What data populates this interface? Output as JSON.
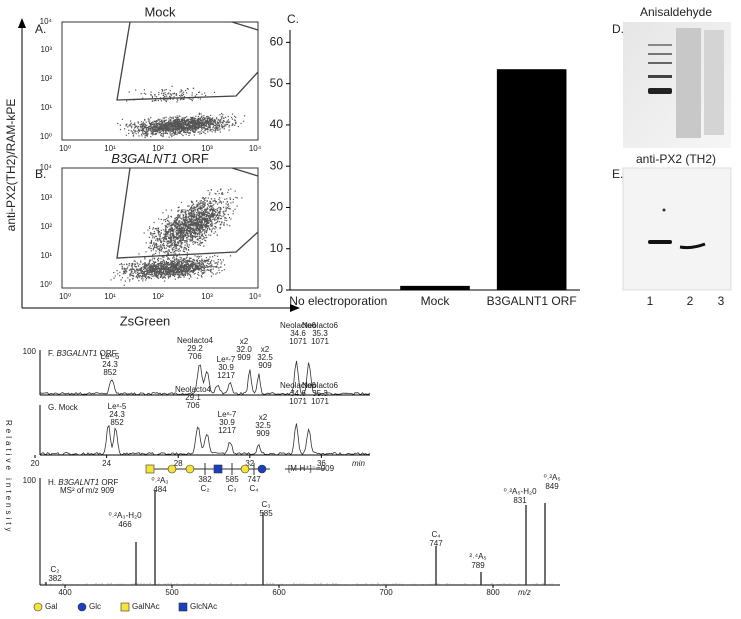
{
  "panel_a": {
    "label": "A.",
    "title": "Mock"
  },
  "panel_b": {
    "label": "B.",
    "title_gene": "B3GALNT1",
    "title_suffix": "ORF"
  },
  "flow_axes": {
    "y_label": "anti-PX2(TH2)/RAM-kPE",
    "x_label": "ZsGreen",
    "ticks": [
      "10⁰",
      "10¹",
      "10²",
      "10³",
      "10⁴"
    ]
  },
  "chart_data": {
    "type": "bar",
    "label": "C.",
    "categories": [
      "No electroporation",
      "Mock",
      "B3GALNT1 ORF"
    ],
    "values": [
      0,
      1,
      53.5
    ],
    "color": "#000000",
    "ylim": [
      0,
      63
    ],
    "yticks": [
      0,
      10,
      20,
      30,
      40,
      50,
      60
    ]
  },
  "panel_d": {
    "label": "D.",
    "title": "Anisaldehyde"
  },
  "panel_e": {
    "label": "E.",
    "title": "anti-PX2 (TH2)",
    "lanes": [
      "1",
      "2",
      "3"
    ]
  },
  "panel_f": {
    "label": "F.",
    "title_gene": "B3GALNT1",
    "title_suffix": "ORF",
    "y_tick": "100",
    "peaks": [
      {
        "name": "Leˣ-5",
        "rt": "24.3",
        "mz": "852"
      },
      {
        "name": "Neolacto4",
        "rt": "29.2",
        "mz": "706"
      },
      {
        "name": "Leˣ-7",
        "rt": "30.9",
        "mz": "1217"
      },
      {
        "name": "x2",
        "rt": "32.0",
        "mz": "909"
      },
      {
        "name": "x2",
        "rt": "32.5",
        "mz": "909"
      },
      {
        "name": "Neolacto6",
        "rt": "34.6",
        "mz": "1071"
      },
      {
        "name": "Neolacto6",
        "rt": "35.3",
        "mz": "1071"
      }
    ]
  },
  "panel_g": {
    "label": "G.",
    "title": "Mock",
    "peaks": [
      {
        "name": "Leˣ-5",
        "rt": "24.3",
        "mz": "852"
      },
      {
        "name": "Neolacto4",
        "rt": "29.1",
        "mz": "706"
      },
      {
        "name": "Leˣ-7",
        "rt": "30.9",
        "mz": "1217"
      },
      {
        "name": "x2",
        "rt": "32.5",
        "mz": "909"
      },
      {
        "name": "Neolacto6",
        "rt": "34.6",
        "mz": "1071"
      },
      {
        "name": "Neolacto6",
        "rt": "35.3",
        "mz": "1071"
      }
    ],
    "x_ticks": [
      "20",
      "24",
      "28",
      "32",
      "36"
    ],
    "x_unit": "min"
  },
  "y_label": "Relative intensity",
  "structure": {
    "fragments": [
      "382",
      "585",
      "747"
    ],
    "ions": [
      "C₂",
      "C₃",
      "C₄"
    ],
    "precursor": "[M-H⁺]⁻=909"
  },
  "panel_h": {
    "label": "H.",
    "title_gene": "B3GALNT1",
    "title_suffix": "ORF",
    "subtitle": "MS² of m/z 909",
    "y_tick": "100",
    "peaks": [
      {
        "ion": "C₂",
        "mz": "382"
      },
      {
        "ion": "⁰˒²A₃-H₂0",
        "mz": "466"
      },
      {
        "ion": "⁰˒²A₃",
        "mz": "484"
      },
      {
        "ion": "C₃",
        "mz": "585"
      },
      {
        "ion": "C₄",
        "mz": "747"
      },
      {
        "ion": "²˒⁴A₅",
        "mz": "789"
      },
      {
        "ion": "⁰˒²A₅-H₂0",
        "mz": "831"
      },
      {
        "ion": "⁰˒²A₅",
        "mz": "849"
      }
    ],
    "x_ticks": [
      "400",
      "500",
      "600",
      "700",
      "800"
    ],
    "x_unit": "m/z"
  },
  "legend": [
    "Gal",
    "Glc",
    "GalNAc",
    "GlcNAc"
  ]
}
